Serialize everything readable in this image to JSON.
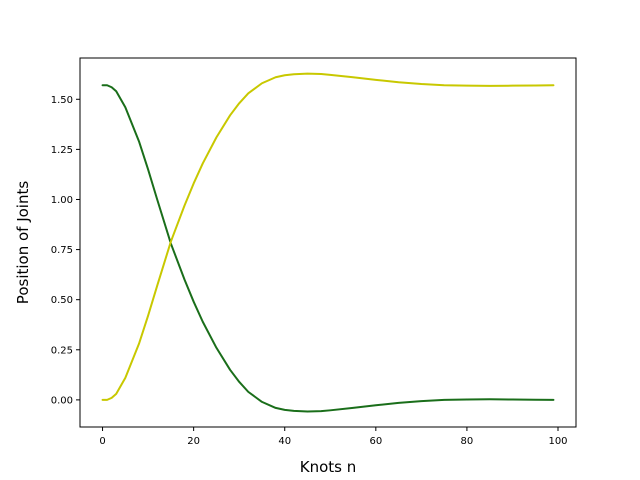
{
  "chart_data": {
    "type": "line",
    "title": "",
    "xlabel": "Knots n",
    "ylabel": "Position of Joints",
    "xlim": [
      -4.95,
      103.95
    ],
    "ylim": [
      -0.1353,
      1.706
    ],
    "xticks": [
      0,
      20,
      40,
      60,
      80,
      100
    ],
    "xtick_labels": [
      "0",
      "20",
      "40",
      "60",
      "80",
      "100"
    ],
    "yticks": [
      0.0,
      0.25,
      0.5,
      0.75,
      1.0,
      1.25,
      1.5
    ],
    "ytick_labels": [
      "0.00",
      "0.25",
      "0.50",
      "0.75",
      "1.00",
      "1.25",
      "1.50"
    ],
    "grid": false,
    "series": [
      {
        "color": "#1a6e1a",
        "x": [
          0,
          1,
          2,
          3,
          5,
          8,
          10,
          12,
          15,
          18,
          20,
          22,
          25,
          28,
          30,
          32,
          35,
          38,
          40,
          42,
          45,
          48,
          50,
          55,
          60,
          65,
          70,
          75,
          80,
          85,
          90,
          95,
          99
        ],
        "y": [
          1.57,
          1.57,
          1.56,
          1.54,
          1.46,
          1.29,
          1.15,
          1.0,
          0.78,
          0.6,
          0.49,
          0.39,
          0.26,
          0.15,
          0.09,
          0.04,
          -0.01,
          -0.04,
          -0.05,
          -0.055,
          -0.058,
          -0.056,
          -0.052,
          -0.04,
          -0.027,
          -0.015,
          -0.006,
          0.0,
          0.002,
          0.003,
          0.002,
          0.001,
          0.0
        ]
      },
      {
        "color": "#c8c800",
        "x": [
          0,
          1,
          2,
          3,
          5,
          8,
          10,
          12,
          15,
          18,
          20,
          22,
          25,
          28,
          30,
          32,
          35,
          38,
          40,
          42,
          45,
          48,
          50,
          55,
          60,
          65,
          70,
          75,
          80,
          85,
          90,
          95,
          99
        ],
        "y": [
          0.0,
          0.0,
          0.01,
          0.03,
          0.11,
          0.28,
          0.42,
          0.57,
          0.79,
          0.97,
          1.08,
          1.18,
          1.31,
          1.42,
          1.48,
          1.53,
          1.58,
          1.61,
          1.62,
          1.625,
          1.628,
          1.626,
          1.622,
          1.61,
          1.597,
          1.585,
          1.576,
          1.57,
          1.568,
          1.567,
          1.568,
          1.569,
          1.57
        ]
      }
    ]
  }
}
